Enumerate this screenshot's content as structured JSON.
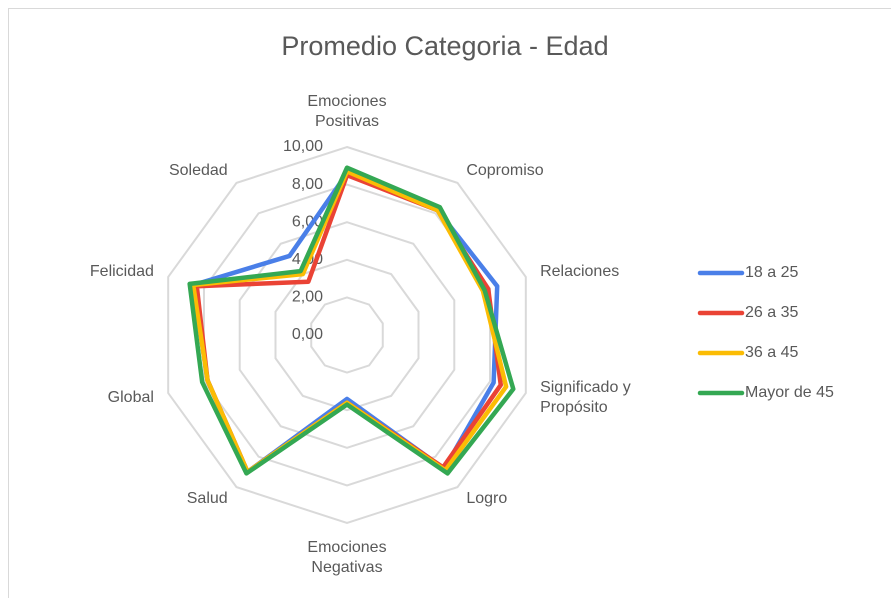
{
  "chart_data": {
    "type": "radar",
    "title": "Promedio Categoria - Edad",
    "categories": [
      "Emociones Positivas",
      "Copromiso",
      "Relaciones",
      "Significado y Propósito",
      "Logro",
      "Emociones Negativas",
      "Salud",
      "Global",
      "Felicidad",
      "Soledad"
    ],
    "series": [
      {
        "name": "18 a 25",
        "color": "#4a7fe8",
        "values": [
          8.6,
          8.2,
          8.4,
          8.2,
          8.8,
          3.4,
          9.0,
          7.8,
          8.6,
          5.2
        ]
      },
      {
        "name": "26 a 35",
        "color": "#ea4335",
        "values": [
          8.5,
          8.2,
          7.9,
          8.6,
          8.7,
          3.6,
          9.0,
          7.8,
          8.4,
          3.5
        ]
      },
      {
        "name": "36 a 45",
        "color": "#fbbc04",
        "values": [
          8.7,
          8.2,
          7.6,
          8.9,
          8.9,
          3.6,
          9.0,
          7.8,
          8.6,
          4.0
        ]
      },
      {
        "name": "Mayor de 45",
        "color": "#34a853",
        "values": [
          8.9,
          8.4,
          7.7,
          9.3,
          9.1,
          3.7,
          9.1,
          8.1,
          8.8,
          4.2
        ]
      }
    ],
    "ylim": [
      0,
      10
    ],
    "yticks": [
      {
        "value": 0,
        "label": "0,00"
      },
      {
        "value": 2,
        "label": "2,00"
      },
      {
        "value": 4,
        "label": "4,00"
      },
      {
        "value": 6,
        "label": "6,00"
      },
      {
        "value": 8,
        "label": "8,00"
      },
      {
        "value": 10,
        "label": "10,00"
      }
    ],
    "grid": true,
    "legend": "right"
  }
}
